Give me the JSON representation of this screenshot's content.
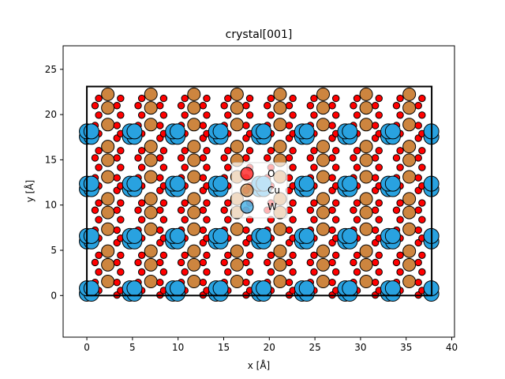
{
  "chart_data": {
    "type": "scatter",
    "title": "crystal[001]",
    "xlabel": "x [Å]",
    "ylabel": "y [Å]",
    "xlim": [
      -2.6,
      40.3
    ],
    "ylim": [
      -4.6,
      27.6
    ],
    "xticks": [
      0,
      5,
      10,
      15,
      20,
      25,
      30,
      35,
      40
    ],
    "yticks": [
      0,
      5,
      10,
      15,
      20,
      25
    ],
    "cell": {
      "x": [
        0,
        37.8
      ],
      "y": [
        0,
        23.1
      ]
    },
    "grid": false,
    "legend": {
      "placement": "center",
      "alpha": 0.7
    },
    "series": [
      {
        "name": "O",
        "color": "#ff0000",
        "size": "small"
      },
      {
        "name": "Cu",
        "color": "#cd853f",
        "size": "medium"
      },
      {
        "name": "W",
        "color": "#29a2e0",
        "size": "large"
      }
    ],
    "lattice": {
      "a": 4.72,
      "b": 5.78,
      "nx": 8,
      "ny": 4,
      "motif": {
        "W": [
          [
            0.0,
            0.2
          ],
          [
            0.5,
            0.2
          ],
          [
            0.0,
            0.8
          ],
          [
            0.5,
            0.8
          ]
        ],
        "Cu": [
          [
            2.3,
            1.55
          ],
          [
            2.3,
            3.4
          ],
          [
            2.3,
            4.9
          ]
        ],
        "O": [
          [
            0.9,
            0.05
          ],
          [
            1.3,
            0.55
          ],
          [
            0.9,
            1.45
          ],
          [
            1.3,
            2.6
          ],
          [
            0.9,
            3.65
          ],
          [
            1.3,
            4.45
          ],
          [
            3.3,
            0.05
          ],
          [
            3.7,
            0.55
          ],
          [
            3.3,
            1.45
          ],
          [
            3.7,
            2.6
          ],
          [
            3.3,
            3.65
          ],
          [
            3.7,
            4.45
          ]
        ]
      }
    }
  }
}
